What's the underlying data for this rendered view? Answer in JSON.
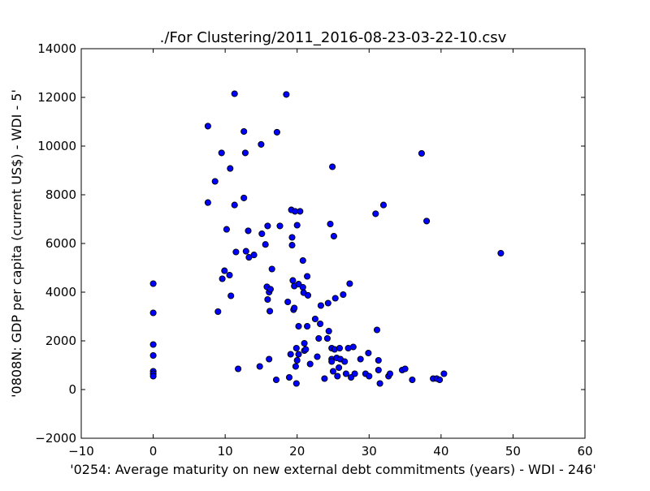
{
  "chart_data": {
    "type": "scatter",
    "title": "./For Clustering/2011_2016-08-23-03-22-10.csv",
    "xlabel": "'0254: Average maturity on new external debt commitments  (years) - WDI - 246'",
    "ylabel": "'0808N: GDP per capita  (current US$) - WDI - 5'",
    "xlim": [
      -10,
      60
    ],
    "ylim": [
      -2000,
      14000
    ],
    "xticks": [
      -10,
      0,
      10,
      20,
      30,
      40,
      50,
      60
    ],
    "yticks": [
      -2000,
      0,
      2000,
      4000,
      6000,
      8000,
      10000,
      12000,
      14000
    ],
    "xtick_labels": [
      "−10",
      "0",
      "10",
      "20",
      "30",
      "40",
      "50",
      "60"
    ],
    "ytick_labels": [
      "−2000",
      "0",
      "2000",
      "4000",
      "6000",
      "8000",
      "10000",
      "12000",
      "14000"
    ],
    "grid": false,
    "marker_color": "#0000ff",
    "series": [
      {
        "points": [
          [
            0,
            4350
          ],
          [
            0,
            3150
          ],
          [
            0,
            1850
          ],
          [
            0,
            1400
          ],
          [
            0,
            750
          ],
          [
            0,
            650
          ],
          [
            0,
            550
          ],
          [
            7.6,
            10820
          ],
          [
            7.6,
            7680
          ],
          [
            8.6,
            8550
          ],
          [
            9.0,
            3200
          ],
          [
            9.5,
            9720
          ],
          [
            9.6,
            4550
          ],
          [
            9.9,
            4880
          ],
          [
            10.2,
            6580
          ],
          [
            10.6,
            4700
          ],
          [
            10.7,
            9080
          ],
          [
            10.8,
            3850
          ],
          [
            11.3,
            12150
          ],
          [
            11.3,
            7580
          ],
          [
            11.5,
            5650
          ],
          [
            11.8,
            850
          ],
          [
            12.6,
            10600
          ],
          [
            12.6,
            7870
          ],
          [
            12.8,
            9720
          ],
          [
            12.9,
            5680
          ],
          [
            13.2,
            6520
          ],
          [
            13.3,
            5430
          ],
          [
            14.0,
            5530
          ],
          [
            14.8,
            950
          ],
          [
            15.0,
            10070
          ],
          [
            15.1,
            6400
          ],
          [
            15.6,
            5960
          ],
          [
            15.8,
            4220
          ],
          [
            15.9,
            6720
          ],
          [
            15.9,
            3700
          ],
          [
            16.1,
            4000
          ],
          [
            16.1,
            1250
          ],
          [
            16.2,
            3220
          ],
          [
            16.3,
            4120
          ],
          [
            16.5,
            4950
          ],
          [
            17.2,
            10570
          ],
          [
            17.1,
            400
          ],
          [
            17.6,
            6720
          ],
          [
            18.5,
            12120
          ],
          [
            18.7,
            3600
          ],
          [
            18.9,
            500
          ],
          [
            19.1,
            1450
          ],
          [
            19.2,
            7380
          ],
          [
            19.3,
            6250
          ],
          [
            19.3,
            5930
          ],
          [
            19.4,
            4480
          ],
          [
            19.5,
            3280
          ],
          [
            19.6,
            3350
          ],
          [
            19.6,
            4250
          ],
          [
            19.7,
            7320
          ],
          [
            19.8,
            950
          ],
          [
            19.9,
            1700
          ],
          [
            19.9,
            250
          ],
          [
            20.0,
            1200
          ],
          [
            20.0,
            6750
          ],
          [
            20.2,
            4330
          ],
          [
            20.2,
            2600
          ],
          [
            20.2,
            1450
          ],
          [
            20.4,
            7320
          ],
          [
            20.8,
            5300
          ],
          [
            20.8,
            4200
          ],
          [
            20.9,
            3980
          ],
          [
            21.0,
            1900
          ],
          [
            21.0,
            1600
          ],
          [
            21.2,
            1650
          ],
          [
            21.4,
            4650
          ],
          [
            21.4,
            2600
          ],
          [
            21.5,
            3870
          ],
          [
            21.8,
            1050
          ],
          [
            22.5,
            2900
          ],
          [
            22.8,
            1350
          ],
          [
            23.0,
            2100
          ],
          [
            23.2,
            2700
          ],
          [
            23.3,
            3450
          ],
          [
            23.8,
            450
          ],
          [
            24.2,
            2100
          ],
          [
            24.3,
            3550
          ],
          [
            24.4,
            2400
          ],
          [
            24.6,
            6800
          ],
          [
            24.8,
            1700
          ],
          [
            24.8,
            1250
          ],
          [
            24.8,
            1150
          ],
          [
            24.9,
            9150
          ],
          [
            25.0,
            750
          ],
          [
            25.1,
            6300
          ],
          [
            25.2,
            1650
          ],
          [
            25.3,
            3750
          ],
          [
            25.5,
            1300
          ],
          [
            25.6,
            550
          ],
          [
            25.8,
            900
          ],
          [
            25.9,
            1700
          ],
          [
            26.0,
            1250
          ],
          [
            26.4,
            3900
          ],
          [
            26.6,
            1150
          ],
          [
            26.8,
            650
          ],
          [
            27.1,
            1700
          ],
          [
            27.3,
            4350
          ],
          [
            27.5,
            500
          ],
          [
            27.8,
            1750
          ],
          [
            28.0,
            650
          ],
          [
            28.8,
            1250
          ],
          [
            29.5,
            650
          ],
          [
            29.9,
            1500
          ],
          [
            30.0,
            550
          ],
          [
            30.9,
            7220
          ],
          [
            31.1,
            2450
          ],
          [
            31.3,
            1200
          ],
          [
            31.3,
            800
          ],
          [
            31.5,
            250
          ],
          [
            32.0,
            7580
          ],
          [
            32.7,
            550
          ],
          [
            32.9,
            650
          ],
          [
            34.6,
            800
          ],
          [
            35.0,
            850
          ],
          [
            36.0,
            400
          ],
          [
            37.3,
            9700
          ],
          [
            38.0,
            6920
          ],
          [
            38.9,
            450
          ],
          [
            39.4,
            450
          ],
          [
            39.8,
            400
          ],
          [
            40.4,
            650
          ],
          [
            48.3,
            5600
          ]
        ]
      }
    ]
  }
}
